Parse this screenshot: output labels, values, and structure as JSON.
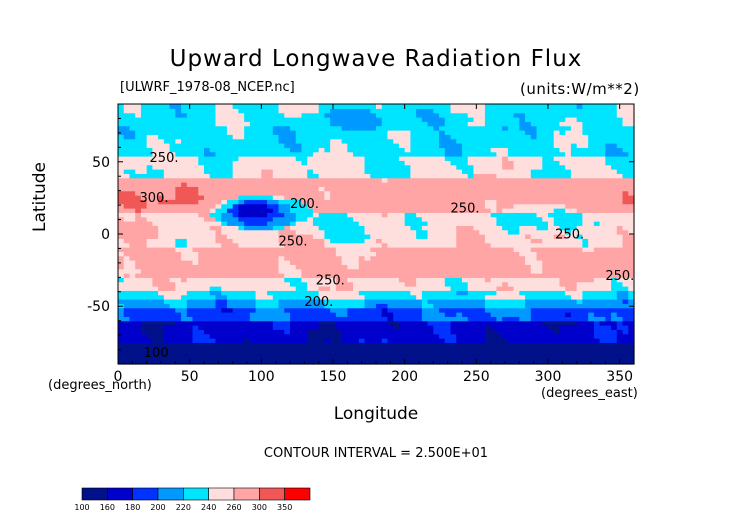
{
  "chart_data": {
    "type": "heatmap",
    "title": "Upward Longwave Radiation Flux",
    "dataset": "[ULWRF_1978-08_NCEP.nc]",
    "units": "(units:W/m**2)",
    "xlabel": "Longitude",
    "ylabel": "Latitude",
    "x_unit": "(degrees_east)",
    "y_unit": "(degrees_north)",
    "xlim": [
      0,
      360
    ],
    "ylim": [
      -90,
      90
    ],
    "xticks": [
      "0",
      "50",
      "100",
      "150",
      "200",
      "250",
      "300",
      "350"
    ],
    "xtick_values": [
      0,
      50,
      100,
      150,
      200,
      250,
      300,
      350
    ],
    "yticks": [
      "50",
      "0",
      "-50"
    ],
    "ytick_values": [
      50,
      0,
      -50
    ],
    "contour_interval": "CONTOUR INTERVAL = 2.500E+01",
    "contour_labels": [
      {
        "text": "250.",
        "x": 22,
        "y": 50
      },
      {
        "text": "300.",
        "x": 15,
        "y": 22
      },
      {
        "text": "200.",
        "x": 120,
        "y": 18
      },
      {
        "text": "250.",
        "x": 112,
        "y": -8
      },
      {
        "text": "250.",
        "x": 232,
        "y": 15
      },
      {
        "text": "250.",
        "x": 305,
        "y": -3
      },
      {
        "text": "250.",
        "x": 340,
        "y": -32
      },
      {
        "text": "250.",
        "x": 138,
        "y": -35
      },
      {
        "text": "200.",
        "x": 130,
        "y": -50
      },
      {
        "text": "100",
        "x": 18,
        "y": -85
      }
    ],
    "colorbar": {
      "levels": [
        "100",
        "160",
        "180",
        "200",
        "220",
        "240",
        "260",
        "300",
        "350"
      ],
      "colors": [
        "#00118a",
        "#0000cc",
        "#0033ff",
        "#0099ff",
        "#00e5ff",
        "#ffdede",
        "#ffa5a5",
        "#f05858",
        "#ff0000"
      ]
    },
    "bands": [
      {
        "lat": [
          -90,
          -75
        ],
        "value": 110
      },
      {
        "lat": [
          -75,
          -60
        ],
        "value": 170
      },
      {
        "lat": [
          -60,
          -52
        ],
        "value": 195
      },
      {
        "lat": [
          -52,
          -45
        ],
        "value": 215
      },
      {
        "lat": [
          -45,
          -38
        ],
        "value": 235
      },
      {
        "lat": [
          -38,
          -30
        ],
        "value": 250
      },
      {
        "lat": [
          -30,
          -10
        ],
        "value": 270
      },
      {
        "lat": [
          -10,
          5
        ],
        "value": 255
      },
      {
        "lat": [
          5,
          15
        ],
        "value": 250
      },
      {
        "lat": [
          15,
          40
        ],
        "value": 275
      },
      {
        "lat": [
          40,
          55
        ],
        "value": 245
      },
      {
        "lat": [
          55,
          75
        ],
        "value": 230
      },
      {
        "lat": [
          75,
          90
        ],
        "value": 235
      }
    ],
    "regions": [
      {
        "name": "tibetan-low",
        "center": [
          100,
          15
        ],
        "radius": [
          35,
          12
        ],
        "value": 195
      },
      {
        "name": "tibetan-core",
        "center": [
          95,
          17
        ],
        "radius": [
          18,
          6
        ],
        "value": 175
      },
      {
        "name": "tropical-pacific-west",
        "center": [
          160,
          5
        ],
        "radius": [
          40,
          10
        ],
        "value": 235
      },
      {
        "name": "amazon-low",
        "center": [
          295,
          10
        ],
        "radius": [
          30,
          12
        ],
        "value": 225
      },
      {
        "name": "sahara-hot",
        "center": [
          20,
          25
        ],
        "radius": [
          30,
          10
        ],
        "value": 310
      },
      {
        "name": "arabia-hot",
        "center": [
          45,
          28
        ],
        "radius": [
          15,
          8
        ],
        "value": 305
      },
      {
        "name": "us-hot",
        "center": [
          255,
          32
        ],
        "radius": [
          25,
          9
        ],
        "value": 290
      },
      {
        "name": "southeast-pacific",
        "center": [
          250,
          -20
        ],
        "radius": [
          40,
          12
        ],
        "value": 280
      },
      {
        "name": "south-atlantic",
        "center": [
          340,
          -20
        ],
        "radius": [
          25,
          10
        ],
        "value": 275
      },
      {
        "name": "arctic-low",
        "center": [
          190,
          80
        ],
        "radius": [
          60,
          8
        ],
        "value": 215
      }
    ]
  },
  "colorbar_labels": [
    "100",
    "160",
    "180",
    "200",
    "220",
    "240",
    "260",
    "300",
    "350"
  ]
}
